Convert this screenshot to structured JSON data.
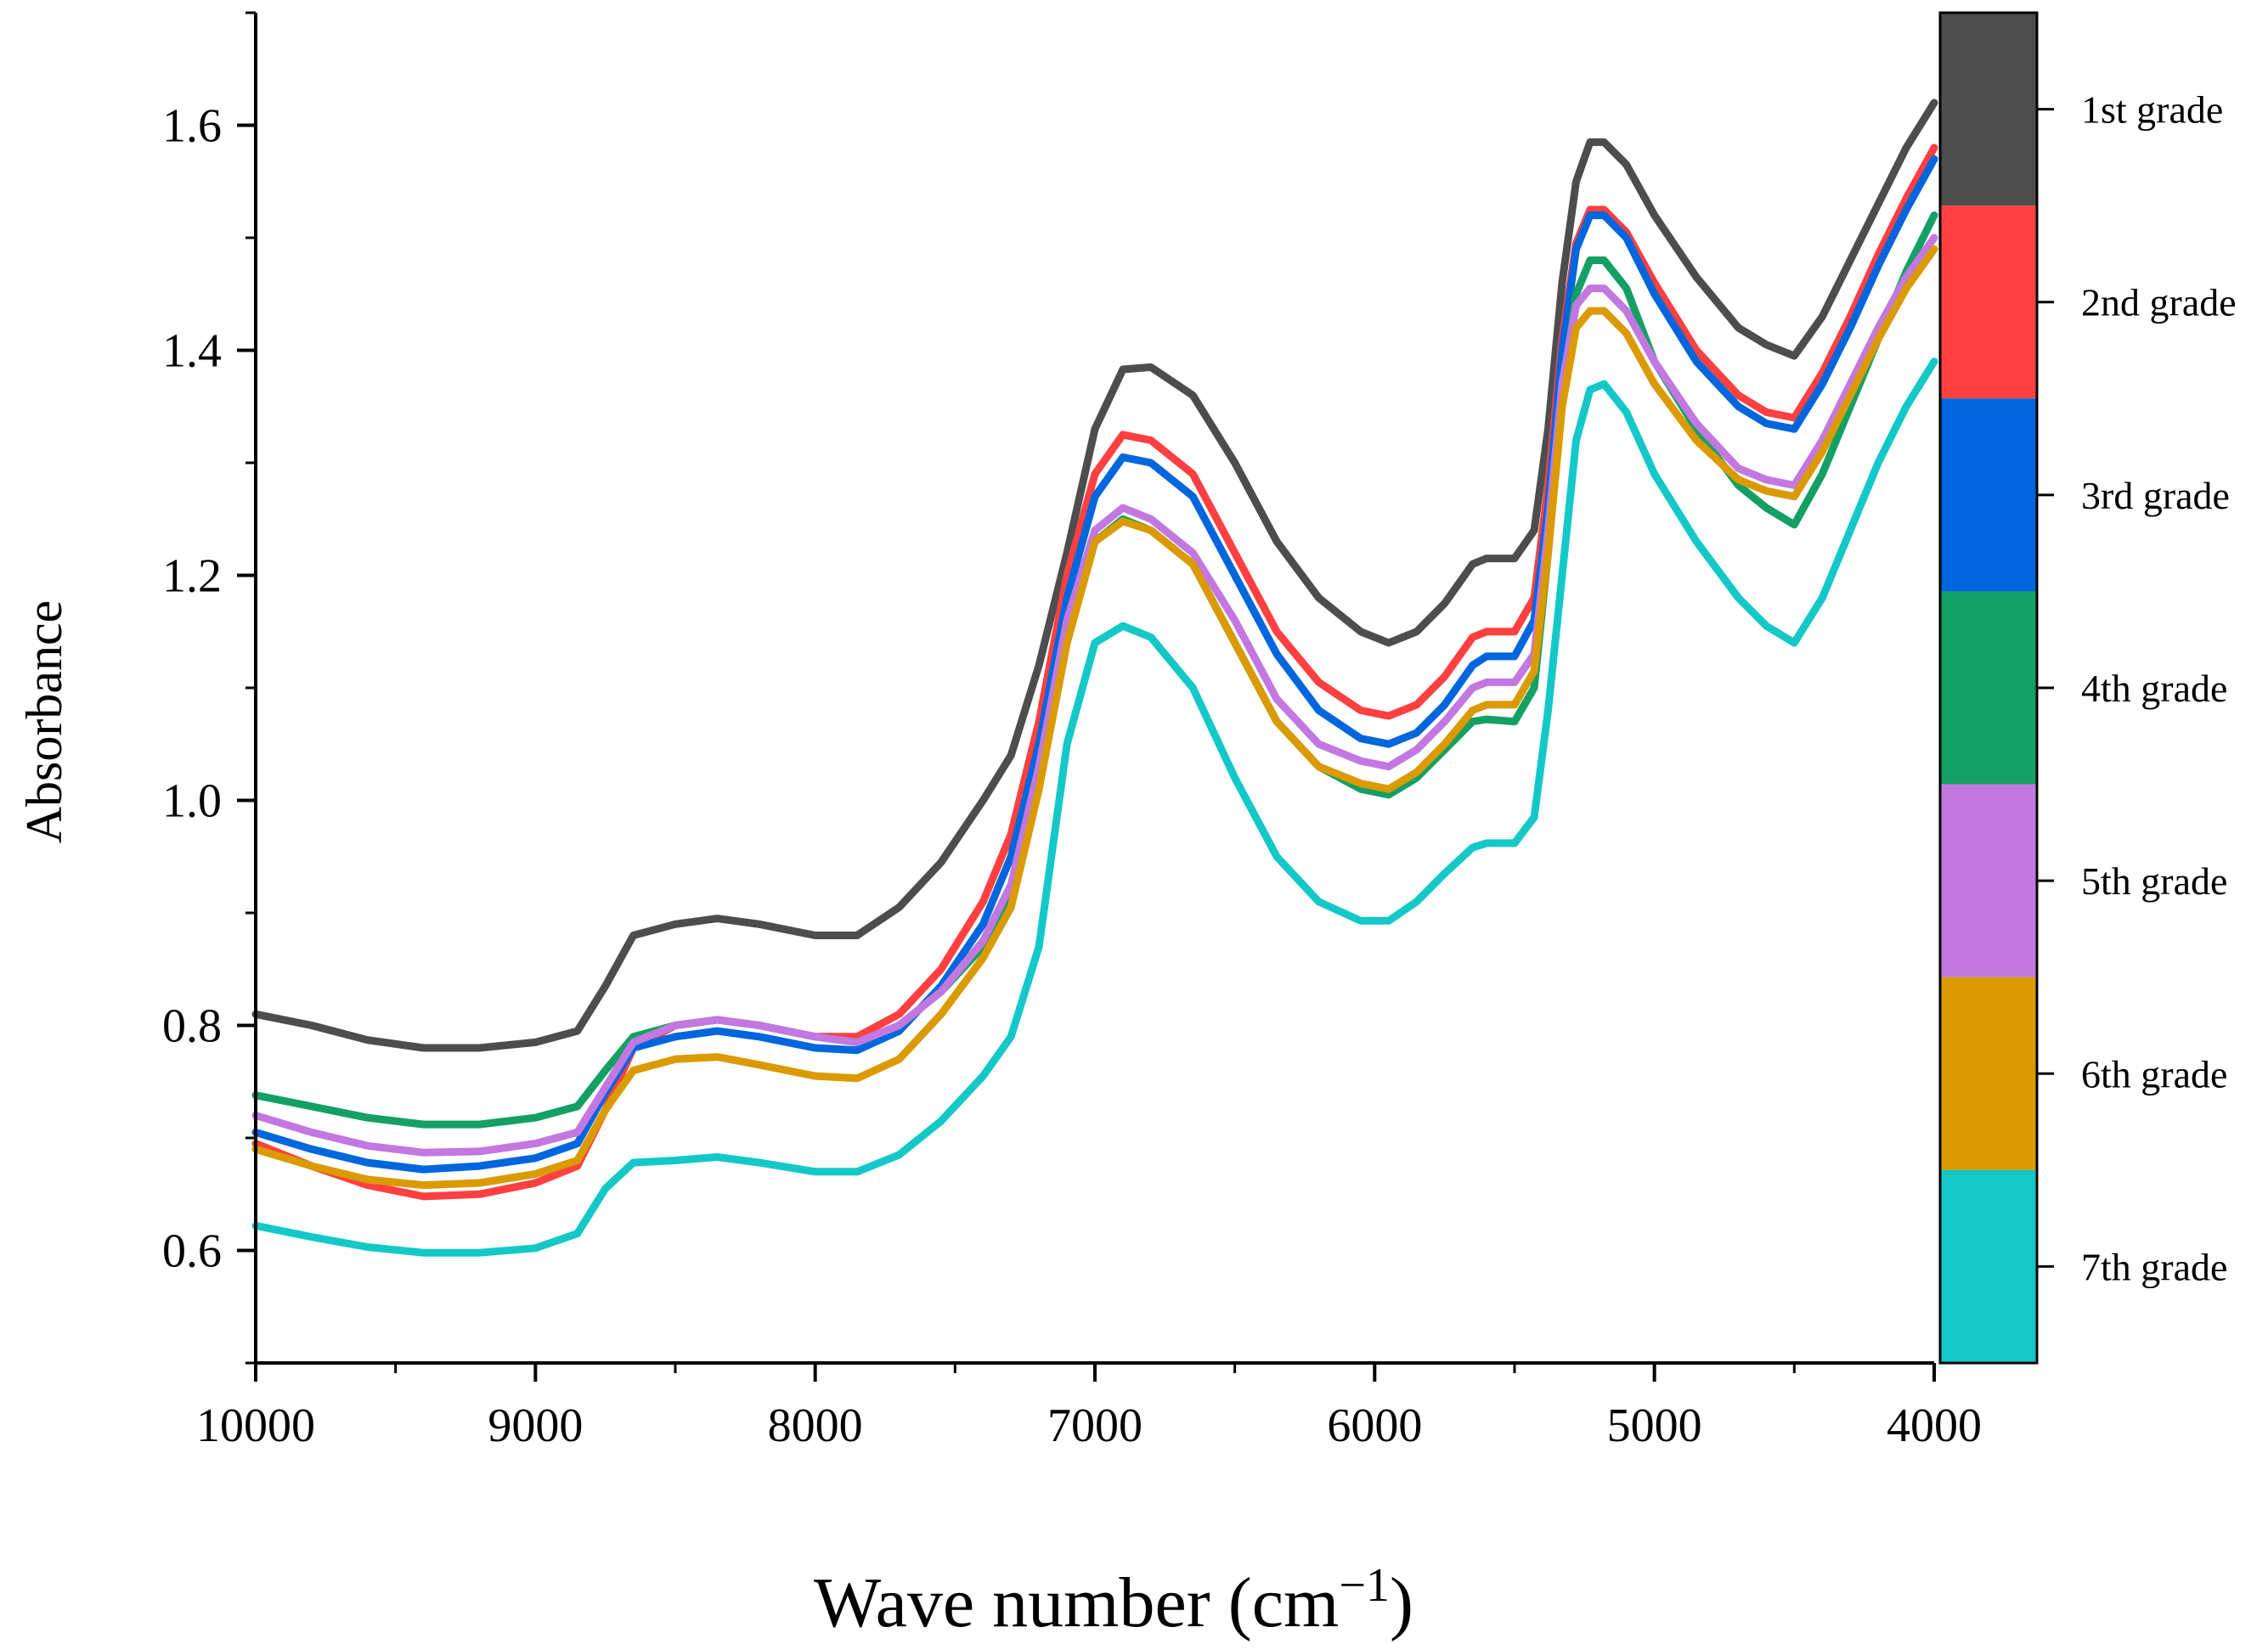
{
  "chart_data": {
    "type": "line",
    "title": "",
    "xlabel": "Wave number (cm",
    "xlabel_sup": "−1",
    "xlabel_close": ")",
    "ylabel": "Absorbance",
    "xlim": [
      10000,
      4000
    ],
    "ylim": [
      0.5,
      1.7
    ],
    "x_ticks": [
      10000,
      9000,
      8000,
      7000,
      6000,
      5000,
      4000
    ],
    "x_tick_labels": [
      "10000",
      "9000",
      "8000",
      "7000",
      "6000",
      "5000",
      "4000"
    ],
    "y_ticks": [
      0.6,
      0.8,
      1.0,
      1.2,
      1.4,
      1.6
    ],
    "y_tick_labels": [
      "0.6",
      "0.8",
      "1.0",
      "1.2",
      "1.4",
      "1.6"
    ],
    "grid": false,
    "legend_position": "right",
    "x": [
      10000,
      9800,
      9600,
      9400,
      9200,
      9000,
      8850,
      8750,
      8650,
      8500,
      8350,
      8200,
      8000,
      7850,
      7700,
      7550,
      7400,
      7300,
      7200,
      7100,
      7000,
      6900,
      6800,
      6650,
      6500,
      6350,
      6200,
      6050,
      5950,
      5850,
      5750,
      5650,
      5600,
      5500,
      5430,
      5380,
      5330,
      5280,
      5230,
      5180,
      5100,
      5000,
      4850,
      4700,
      4600,
      4500,
      4400,
      4300,
      4200,
      4100,
      4000
    ],
    "series": [
      {
        "name": "1st grade",
        "color": "#4d4d4d",
        "values": [
          0.81,
          0.8,
          0.787,
          0.78,
          0.78,
          0.785,
          0.795,
          0.835,
          0.88,
          0.89,
          0.895,
          0.89,
          0.88,
          0.88,
          0.905,
          0.945,
          1.0,
          1.04,
          1.12,
          1.22,
          1.33,
          1.383,
          1.385,
          1.36,
          1.3,
          1.23,
          1.18,
          1.15,
          1.14,
          1.15,
          1.175,
          1.21,
          1.215,
          1.215,
          1.24,
          1.33,
          1.46,
          1.55,
          1.585,
          1.585,
          1.565,
          1.52,
          1.465,
          1.42,
          1.405,
          1.395,
          1.43,
          1.48,
          1.53,
          1.58,
          1.62
        ]
      },
      {
        "name": "2nd grade",
        "color": "#ff4040",
        "values": [
          0.695,
          0.675,
          0.658,
          0.648,
          0.65,
          0.66,
          0.675,
          0.725,
          0.78,
          0.8,
          0.805,
          0.8,
          0.79,
          0.79,
          0.81,
          0.85,
          0.91,
          0.97,
          1.07,
          1.2,
          1.29,
          1.325,
          1.32,
          1.29,
          1.22,
          1.15,
          1.105,
          1.08,
          1.075,
          1.085,
          1.11,
          1.145,
          1.15,
          1.15,
          1.18,
          1.28,
          1.41,
          1.495,
          1.525,
          1.525,
          1.505,
          1.46,
          1.4,
          1.36,
          1.345,
          1.34,
          1.38,
          1.43,
          1.485,
          1.535,
          1.58
        ]
      },
      {
        "name": "3rd grade",
        "color": "#0066dd",
        "values": [
          0.705,
          0.69,
          0.678,
          0.672,
          0.675,
          0.682,
          0.695,
          0.74,
          0.78,
          0.79,
          0.795,
          0.79,
          0.78,
          0.778,
          0.795,
          0.835,
          0.89,
          0.95,
          1.05,
          1.18,
          1.27,
          1.305,
          1.3,
          1.27,
          1.2,
          1.13,
          1.08,
          1.055,
          1.05,
          1.06,
          1.085,
          1.12,
          1.128,
          1.128,
          1.16,
          1.26,
          1.4,
          1.49,
          1.52,
          1.52,
          1.5,
          1.45,
          1.39,
          1.35,
          1.335,
          1.33,
          1.37,
          1.42,
          1.475,
          1.525,
          1.57
        ]
      },
      {
        "name": "4th grade",
        "color": "#14a064",
        "values": [
          0.738,
          0.728,
          0.718,
          0.712,
          0.712,
          0.718,
          0.728,
          0.76,
          0.79,
          0.8,
          0.805,
          0.8,
          0.79,
          0.785,
          0.8,
          0.83,
          0.87,
          0.92,
          1.02,
          1.15,
          1.23,
          1.25,
          1.24,
          1.21,
          1.14,
          1.07,
          1.03,
          1.01,
          1.005,
          1.02,
          1.045,
          1.07,
          1.072,
          1.07,
          1.1,
          1.22,
          1.36,
          1.45,
          1.48,
          1.48,
          1.455,
          1.39,
          1.33,
          1.28,
          1.26,
          1.245,
          1.29,
          1.35,
          1.41,
          1.47,
          1.52
        ]
      },
      {
        "name": "5th grade",
        "color": "#c278e0",
        "values": [
          0.72,
          0.705,
          0.693,
          0.687,
          0.688,
          0.695,
          0.705,
          0.745,
          0.785,
          0.8,
          0.805,
          0.8,
          0.79,
          0.785,
          0.8,
          0.83,
          0.875,
          0.925,
          1.03,
          1.16,
          1.24,
          1.26,
          1.25,
          1.22,
          1.16,
          1.09,
          1.05,
          1.035,
          1.03,
          1.045,
          1.07,
          1.1,
          1.105,
          1.105,
          1.13,
          1.24,
          1.37,
          1.44,
          1.455,
          1.455,
          1.435,
          1.39,
          1.335,
          1.295,
          1.285,
          1.28,
          1.32,
          1.37,
          1.42,
          1.465,
          1.5
        ]
      },
      {
        "name": "6th grade",
        "color": "#da9a00",
        "values": [
          0.69,
          0.675,
          0.663,
          0.658,
          0.66,
          0.668,
          0.68,
          0.725,
          0.76,
          0.77,
          0.772,
          0.765,
          0.755,
          0.753,
          0.77,
          0.81,
          0.86,
          0.905,
          1.01,
          1.14,
          1.23,
          1.248,
          1.24,
          1.21,
          1.14,
          1.07,
          1.03,
          1.015,
          1.01,
          1.025,
          1.05,
          1.08,
          1.085,
          1.085,
          1.115,
          1.22,
          1.35,
          1.42,
          1.435,
          1.435,
          1.415,
          1.37,
          1.32,
          1.285,
          1.275,
          1.27,
          1.31,
          1.36,
          1.41,
          1.455,
          1.49
        ]
      },
      {
        "name": "7th grade",
        "color": "#14c8c8",
        "values": [
          0.622,
          0.612,
          0.603,
          0.598,
          0.598,
          0.602,
          0.615,
          0.655,
          0.678,
          0.68,
          0.683,
          0.678,
          0.67,
          0.67,
          0.685,
          0.715,
          0.755,
          0.79,
          0.87,
          1.05,
          1.14,
          1.155,
          1.145,
          1.1,
          1.02,
          0.95,
          0.91,
          0.893,
          0.893,
          0.91,
          0.935,
          0.958,
          0.962,
          0.962,
          0.985,
          1.08,
          1.2,
          1.32,
          1.365,
          1.37,
          1.345,
          1.29,
          1.23,
          1.18,
          1.155,
          1.14,
          1.18,
          1.24,
          1.3,
          1.35,
          1.39
        ]
      }
    ]
  }
}
